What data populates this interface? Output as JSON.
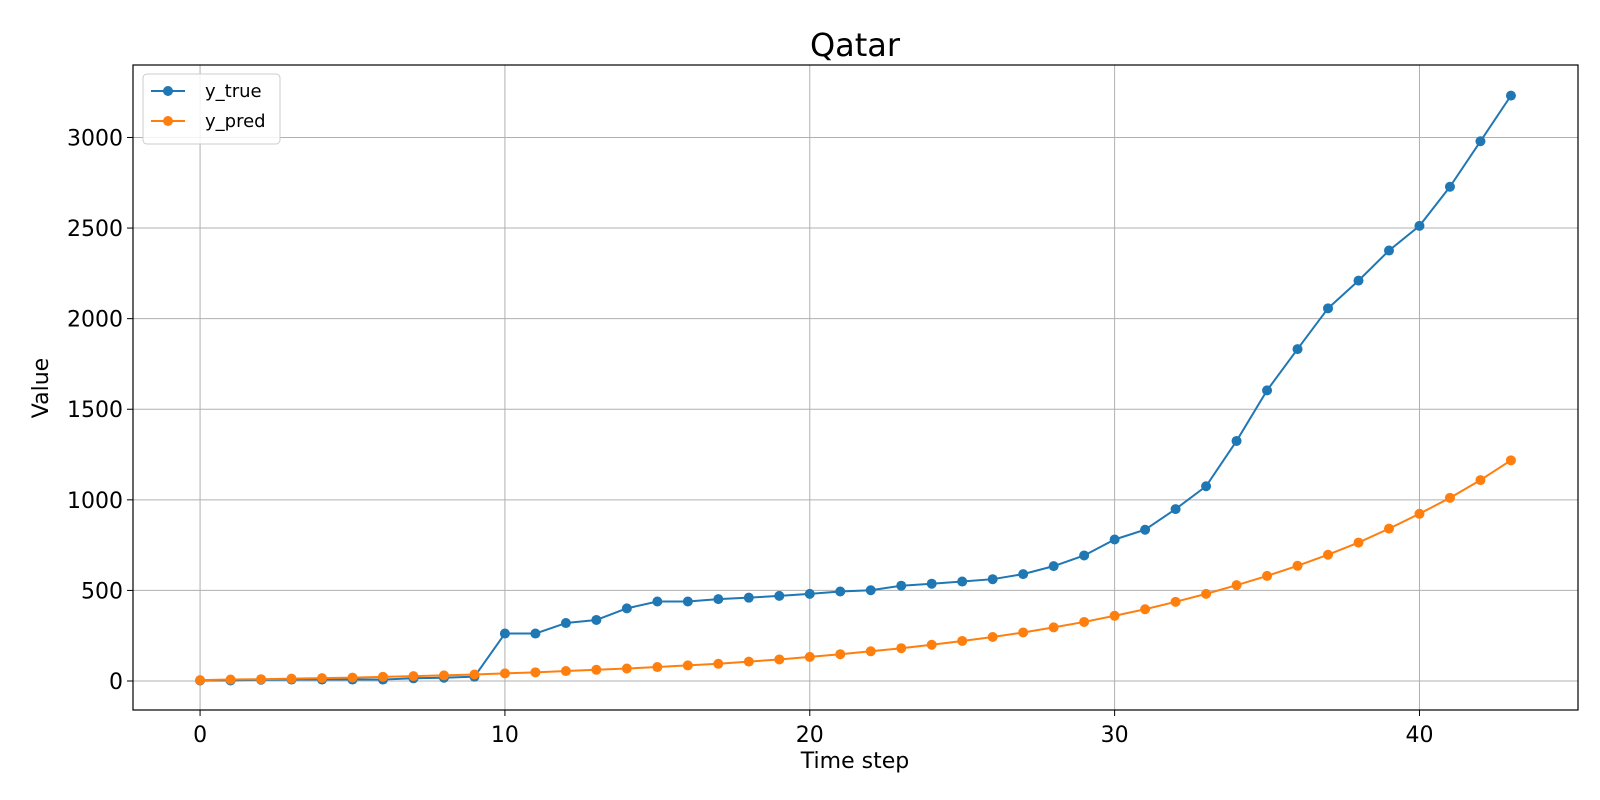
{
  "chart_data": {
    "type": "line",
    "title": "Qatar",
    "xlabel": "Time step",
    "ylabel": "Value",
    "xlim": [
      -2.2,
      45.2
    ],
    "ylim": [
      -160,
      3400
    ],
    "xticks": [
      0,
      10,
      20,
      30,
      40
    ],
    "yticks": [
      0,
      500,
      1000,
      1500,
      2000,
      2500,
      3000
    ],
    "grid": true,
    "legend_position": "top-left",
    "x": [
      0,
      1,
      2,
      3,
      4,
      5,
      6,
      7,
      8,
      9,
      10,
      11,
      12,
      13,
      14,
      15,
      16,
      17,
      18,
      19,
      20,
      21,
      22,
      23,
      24,
      25,
      26,
      27,
      28,
      29,
      30,
      31,
      32,
      33,
      34,
      35,
      36,
      37,
      38,
      39,
      40,
      41,
      42,
      43
    ],
    "series": [
      {
        "name": "y_true",
        "color": "#1f77b4",
        "values": [
          3,
          3,
          7,
          8,
          8,
          8,
          8,
          15,
          18,
          24,
          262,
          262,
          320,
          337,
          401,
          439,
          439,
          452,
          460,
          470,
          481,
          494,
          501,
          526,
          537,
          549,
          562,
          590,
          634,
          693,
          781,
          835,
          949,
          1075,
          1325,
          1604,
          1832,
          2057,
          2210,
          2376,
          2512,
          2728,
          2979,
          3231
        ]
      },
      {
        "name": "y_pred",
        "color": "#ff7f0e",
        "values": [
          5,
          8,
          10,
          13,
          16,
          19,
          23,
          27,
          31,
          36,
          42,
          48,
          55,
          62,
          69,
          77,
          86,
          95,
          107,
          119,
          133,
          148,
          164,
          181,
          200,
          221,
          243,
          268,
          296,
          326,
          360,
          396,
          437,
          481,
          529,
          580,
          636,
          697,
          764,
          841,
          923,
          1011,
          1109,
          1218
        ]
      }
    ]
  }
}
